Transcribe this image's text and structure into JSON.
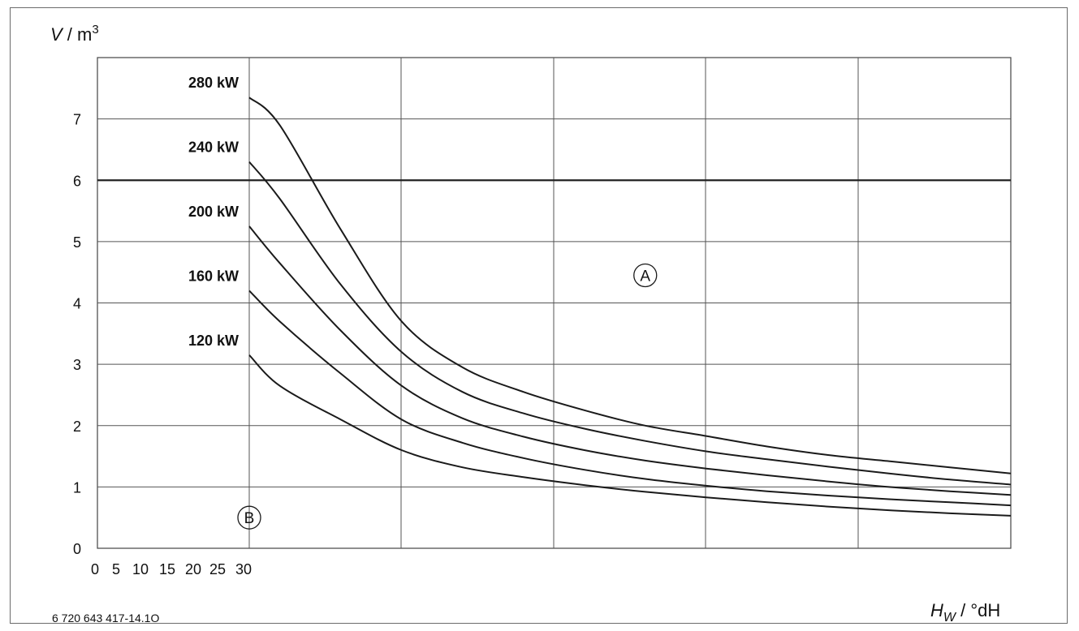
{
  "chart_data": {
    "type": "line",
    "ylabel_var": "V",
    "ylabel_unit": " / m",
    "ylabel_exp": "3",
    "xlabel_var": "H",
    "xlabel_sub": "W",
    "xlabel_unit": " / °dH",
    "x_tick_labels": [
      "0",
      "5",
      "10",
      "15",
      "20",
      "25",
      "30"
    ],
    "y_tick_labels": [
      "0",
      "1",
      "2",
      "3",
      "4",
      "5",
      "6",
      "7"
    ],
    "ylim": [
      0,
      8
    ],
    "xlim": [
      0,
      30
    ],
    "grid": true,
    "threshold_y": 6,
    "regions": [
      {
        "label": "A",
        "x": 18,
        "y": 4.45
      },
      {
        "label": "B",
        "x": 5,
        "y": 0.5
      }
    ],
    "series": [
      {
        "name": "280 kW",
        "x": [
          5,
          6,
          8,
          10,
          12,
          14,
          16,
          18,
          20,
          22,
          24,
          26,
          28,
          30
        ],
        "y": [
          7.35,
          6.9,
          5.2,
          3.7,
          2.95,
          2.55,
          2.25,
          2.0,
          1.83,
          1.66,
          1.52,
          1.42,
          1.32,
          1.22
        ]
      },
      {
        "name": "240 kW",
        "x": [
          5,
          6,
          8,
          10,
          12,
          14,
          16,
          18,
          20,
          22,
          24,
          26,
          28,
          30
        ],
        "y": [
          6.3,
          5.7,
          4.3,
          3.2,
          2.55,
          2.2,
          1.95,
          1.75,
          1.58,
          1.45,
          1.33,
          1.22,
          1.12,
          1.04
        ]
      },
      {
        "name": "200 kW",
        "x": [
          5,
          6,
          8,
          10,
          12,
          14,
          16,
          18,
          20,
          22,
          24,
          26,
          28,
          30
        ],
        "y": [
          5.25,
          4.65,
          3.55,
          2.65,
          2.12,
          1.82,
          1.6,
          1.43,
          1.3,
          1.19,
          1.09,
          1.0,
          0.93,
          0.87
        ]
      },
      {
        "name": "160 kW",
        "x": [
          5,
          6,
          8,
          10,
          12,
          14,
          16,
          18,
          20,
          22,
          24,
          26,
          28,
          30
        ],
        "y": [
          4.2,
          3.7,
          2.85,
          2.1,
          1.72,
          1.47,
          1.28,
          1.13,
          1.02,
          0.93,
          0.86,
          0.8,
          0.75,
          0.7
        ]
      },
      {
        "name": "120 kW",
        "x": [
          5,
          6,
          8,
          10,
          12,
          14,
          16,
          18,
          20,
          22,
          24,
          26,
          28,
          30
        ],
        "y": [
          3.15,
          2.65,
          2.1,
          1.6,
          1.32,
          1.16,
          1.03,
          0.92,
          0.83,
          0.75,
          0.68,
          0.62,
          0.57,
          0.53
        ]
      }
    ]
  },
  "figure_code": "6 720 643 417-14.1O"
}
